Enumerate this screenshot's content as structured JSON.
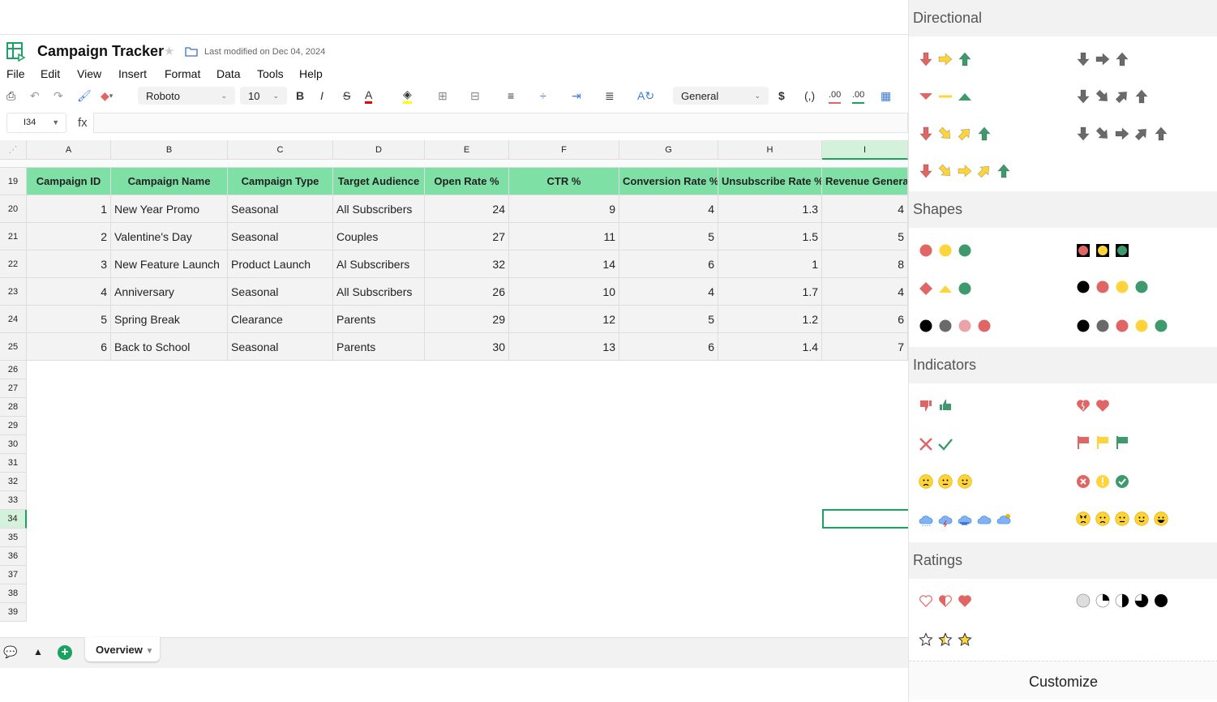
{
  "app": {
    "title": "Campaign Tracker",
    "last_modified": "Last modified on Dec 04, 2024"
  },
  "menu": [
    "File",
    "Edit",
    "View",
    "Insert",
    "Format",
    "Data",
    "Tools",
    "Help"
  ],
  "toolbar": {
    "font": "Roboto",
    "font_size": "10",
    "number_format": "General",
    "currency": "$",
    "comma": "(,)",
    "dec_decrease": ".00",
    "dec_increase": ".00"
  },
  "formula_bar": {
    "name_box": "I34",
    "fx": "fx",
    "value": ""
  },
  "columns": [
    "A",
    "B",
    "C",
    "D",
    "E",
    "F",
    "G",
    "H",
    "I"
  ],
  "header_row": {
    "row": "19",
    "cells": [
      "Campaign ID",
      "Campaign Name",
      "Campaign Type",
      "Target Audience",
      "Open Rate %",
      "CTR %",
      "Conversion Rate %",
      "Unsubscribe Rate %",
      "Revenue Generat"
    ]
  },
  "rows": [
    {
      "row": "20",
      "cells": [
        "1",
        "New Year Promo",
        "Seasonal",
        "All Subscribers",
        "24",
        "9",
        "4",
        "1.3",
        "4"
      ]
    },
    {
      "row": "21",
      "cells": [
        "2",
        "Valentine's Day",
        "Seasonal",
        "Couples",
        "27",
        "11",
        "5",
        "1.5",
        "5"
      ]
    },
    {
      "row": "22",
      "cells": [
        "3",
        "New Feature Launch",
        "Product Launch",
        "Al Subscribers",
        "32",
        "14",
        "6",
        "1",
        "8"
      ]
    },
    {
      "row": "23",
      "cells": [
        "4",
        "Anniversary",
        "Seasonal",
        "All Subscribers",
        "26",
        "10",
        "4",
        "1.7",
        "4"
      ]
    },
    {
      "row": "24",
      "cells": [
        "5",
        "Spring Break",
        "Clearance",
        "Parents",
        "29",
        "12",
        "5",
        "1.2",
        "6"
      ]
    },
    {
      "row": "25",
      "cells": [
        "6",
        "Back to School",
        "Seasonal",
        "Parents",
        "30",
        "13",
        "6",
        "1.4",
        "7"
      ]
    }
  ],
  "empty_rows": [
    "26",
    "27",
    "28",
    "29",
    "30",
    "31",
    "32",
    "33",
    "34",
    "35",
    "36",
    "37",
    "38",
    "39"
  ],
  "selected_cell": "I34",
  "sheets": [
    {
      "name": "Overview",
      "active": true
    }
  ],
  "panel": {
    "sections": [
      {
        "title": "Directional",
        "sets": [
          [
            "arrow-down-red",
            "arrow-right-yellow",
            "arrow-up-green"
          ],
          [
            "arrow-down-grey",
            "arrow-right-grey",
            "arrow-up-grey"
          ],
          [
            "triangle-down-red",
            "dash-yellow",
            "triangle-up-green"
          ],
          [
            "arrow-down-grey",
            "arrow-se-grey",
            "arrow-ne-grey",
            "arrow-up-grey"
          ],
          [
            "arrow-down-red",
            "arrow-se-yellow",
            "arrow-ne-yellow",
            "arrow-up-green"
          ],
          [
            "arrow-down-grey",
            "arrow-se-grey",
            "arrow-right-grey",
            "arrow-ne-grey",
            "arrow-up-grey"
          ],
          [
            "arrow-down-red",
            "arrow-se-yellow",
            "arrow-right-yellow",
            "arrow-ne-yellow",
            "arrow-up-green"
          ]
        ]
      },
      {
        "title": "Shapes",
        "sets": [
          [
            "circle-red",
            "circle-yellow",
            "circle-green"
          ],
          [
            "boxed-red",
            "boxed-yellow",
            "boxed-green"
          ],
          [
            "diamond-red",
            "triangle-yellow",
            "circle-green"
          ],
          [
            "circle-black",
            "circle-red",
            "circle-yellow",
            "circle-green"
          ],
          [
            "circle-black",
            "circle-grey",
            "circle-pink",
            "circle-red"
          ],
          [
            "circle-black",
            "circle-grey",
            "circle-red",
            "circle-yellow",
            "circle-green"
          ]
        ]
      },
      {
        "title": "Indicators",
        "sets": [
          [
            "thumb-down-red",
            "thumb-up-green"
          ],
          [
            "broken-heart-red",
            "heart-red"
          ],
          [
            "cross-red",
            "check-green"
          ],
          [
            "flag-red",
            "flag-yellow",
            "flag-green"
          ],
          [
            "face-sad",
            "face-neutral",
            "face-smile"
          ],
          [
            "circle-cross-red",
            "circle-exclaim-yellow",
            "circle-check-green"
          ],
          [
            "cloud-rain",
            "cloud-storm",
            "cloud-wind",
            "cloud",
            "cloud-sun"
          ],
          [
            "face-angry",
            "face-sad",
            "face-neutral",
            "face-smile",
            "face-grin"
          ]
        ]
      },
      {
        "title": "Ratings",
        "sets": [
          [
            "heart-empty",
            "heart-half",
            "heart-full"
          ],
          [
            "pie-0",
            "pie-25",
            "pie-50",
            "pie-75",
            "pie-100"
          ],
          [
            "star-empty",
            "star-half",
            "star-full"
          ]
        ]
      }
    ],
    "customize_label": "Customize"
  },
  "colors": {
    "red": "#e06666",
    "yellow": "#ffd43b",
    "green": "#3e9a6c",
    "grey": "#6a6a6a",
    "header_fill": "#7fe0a6",
    "accent": "#1aa260"
  }
}
